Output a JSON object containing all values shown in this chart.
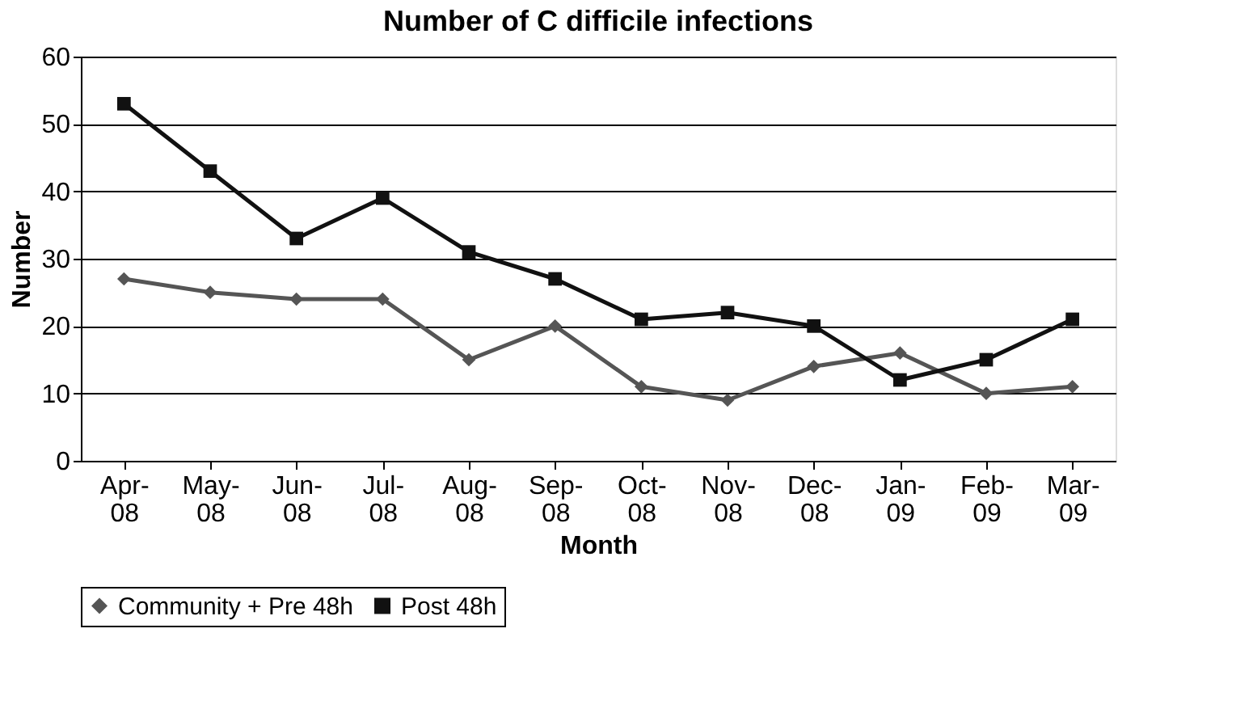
{
  "chart_data": {
    "type": "line",
    "title": "Number of C difficile infections",
    "xlabel": "Month",
    "ylabel": "Number",
    "categories": [
      "Apr-08",
      "May-08",
      "Jun-08",
      "Jul-08",
      "Aug-08",
      "Sep-08",
      "Oct-08",
      "Nov-08",
      "Dec-08",
      "Jan-09",
      "Feb-09",
      "Mar-09"
    ],
    "series": [
      {
        "name": "Community + Pre 48h",
        "color": "#555555",
        "marker": "diamond",
        "values": [
          27,
          25,
          24,
          24,
          15,
          20,
          11,
          9,
          14,
          16,
          10,
          11
        ]
      },
      {
        "name": "Post 48h",
        "color": "#111111",
        "marker": "square",
        "values": [
          53,
          43,
          33,
          39,
          31,
          27,
          21,
          22,
          20,
          12,
          15,
          21
        ]
      }
    ],
    "ylim": [
      0,
      60
    ],
    "yticks": [
      0,
      10,
      20,
      30,
      40,
      50,
      60
    ],
    "grid": "y",
    "legend": "bottom",
    "line_style": "solid"
  }
}
